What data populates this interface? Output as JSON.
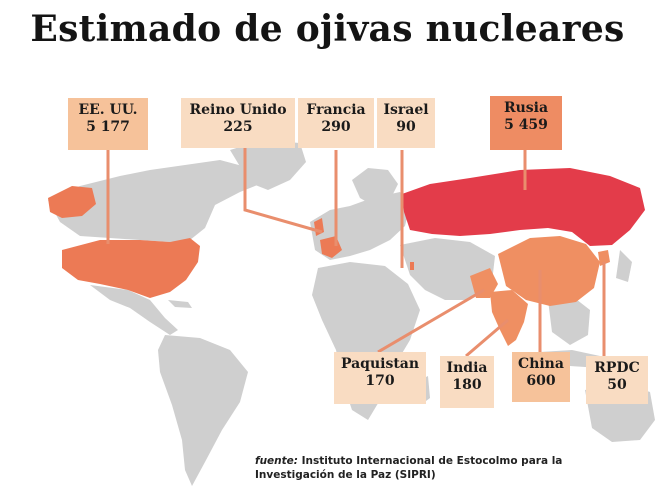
{
  "title": "Estimado de ojivas nucleares",
  "colors": {
    "land": "#cfcfcf",
    "usa": "#ec7a55",
    "russia": "#e33c4a",
    "china": "#ef8f62",
    "label_light": "#f9dcc2",
    "label_dark": "#ee8c63",
    "leader_line": "#e98e6d"
  },
  "countries": [
    {
      "name": "EE. UU.",
      "value": "5 177"
    },
    {
      "name": "Reino Unido",
      "value": "225"
    },
    {
      "name": "Francia",
      "value": "290"
    },
    {
      "name": "Israel",
      "value": "90"
    },
    {
      "name": "Rusia",
      "value": "5 459"
    },
    {
      "name": "Paquistan",
      "value": "170"
    },
    {
      "name": "India",
      "value": "180"
    },
    {
      "name": "China",
      "value": "600"
    },
    {
      "name": "RPDC",
      "value": "50"
    }
  ],
  "source": {
    "label": "fuente:",
    "text": "Instituto Internacional de Estocolmo para la Investigación de la Paz (SIPRI)"
  }
}
